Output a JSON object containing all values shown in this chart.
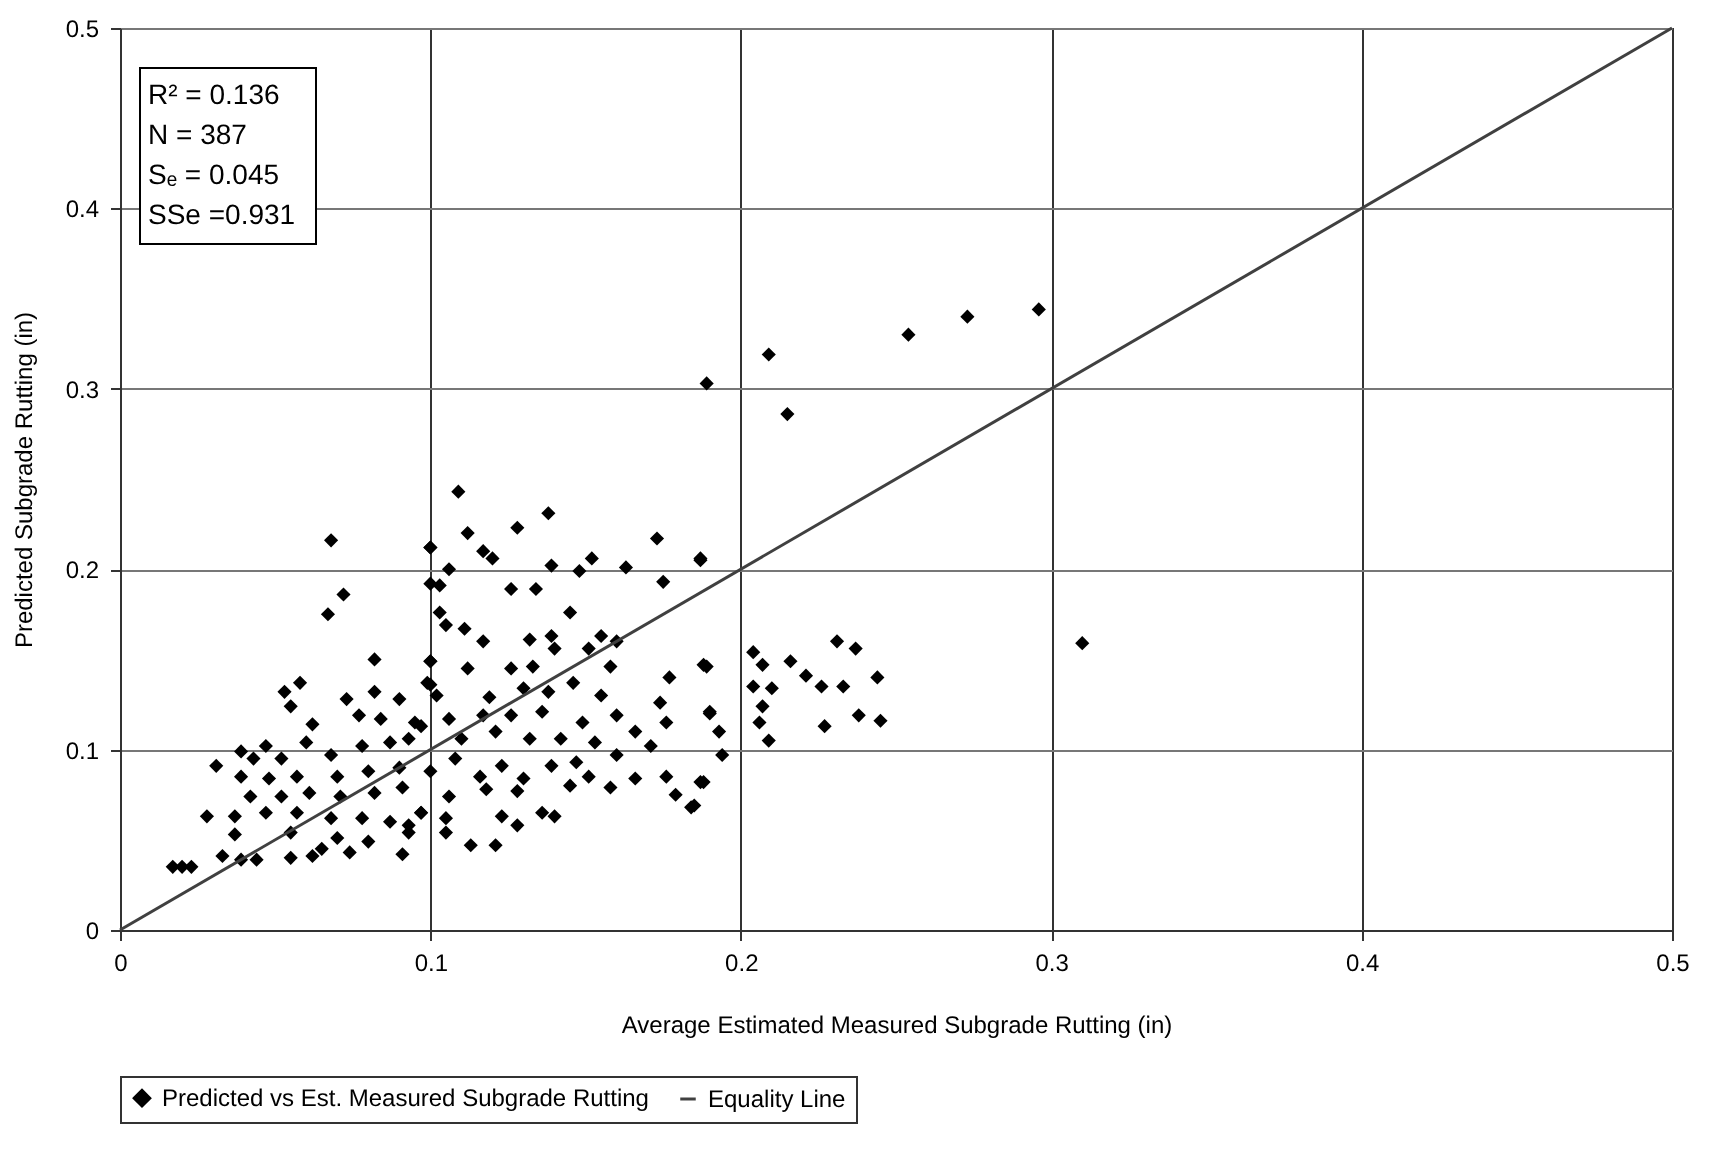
{
  "chart_data": {
    "type": "scatter",
    "xlabel": "Average Estimated Measured Subgrade Rutting (in)",
    "ylabel": "Predicted Subgrade Rutting (in)",
    "xlim": [
      0,
      0.5
    ],
    "ylim": [
      0,
      0.5
    ],
    "xticks": [
      0,
      0.1,
      0.2,
      0.3,
      0.4,
      0.5
    ],
    "yticks": [
      0,
      0.1,
      0.2,
      0.3,
      0.4,
      0.5
    ],
    "grid": true,
    "legend": "bottom",
    "annotations": [
      "R² = 0.136",
      "N  = 387",
      "Sₑ = 0.045",
      "SSe =0.931"
    ],
    "series": [
      {
        "name": "Predicted vs Est. Measured Subgrade Rutting",
        "type": "scatter",
        "marker": "diamond",
        "color": "#000000",
        "x": [
          0.189,
          0.209,
          0.215,
          0.254,
          0.273,
          0.296,
          0.31,
          0.231,
          0.237,
          0.204,
          0.207,
          0.216,
          0.221,
          0.204,
          0.21,
          0.226,
          0.233,
          0.244,
          0.207,
          0.206,
          0.238,
          0.245,
          0.227,
          0.209,
          0.189,
          0.19,
          0.193,
          0.194,
          0.188,
          0.185,
          0.187,
          0.109,
          0.138,
          0.128,
          0.112,
          0.1,
          0.117,
          0.12,
          0.173,
          0.187,
          0.106,
          0.139,
          0.152,
          0.163,
          0.148,
          0.103,
          0.126,
          0.134,
          0.175,
          0.145,
          0.103,
          0.105,
          0.111,
          0.117,
          0.132,
          0.139,
          0.14,
          0.155,
          0.16,
          0.151,
          0.158,
          0.1,
          0.112,
          0.126,
          0.133,
          0.188,
          0.177,
          0.099,
          0.102,
          0.119,
          0.13,
          0.138,
          0.146,
          0.155,
          0.174,
          0.19,
          0.176,
          0.106,
          0.117,
          0.126,
          0.136,
          0.149,
          0.16,
          0.166,
          0.171,
          0.097,
          0.11,
          0.121,
          0.132,
          0.142,
          0.153,
          0.16,
          0.108,
          0.123,
          0.139,
          0.147,
          0.176,
          0.187,
          0.1,
          0.116,
          0.13,
          0.151,
          0.166,
          0.158,
          0.179,
          0.184,
          0.106,
          0.118,
          0.128,
          0.145,
          0.097,
          0.105,
          0.123,
          0.128,
          0.136,
          0.14,
          0.105,
          0.113,
          0.121,
          0.093,
          0.068,
          0.072,
          0.067,
          0.1,
          0.1,
          0.082,
          0.058,
          0.053,
          0.055,
          0.073,
          0.082,
          0.09,
          0.1,
          0.1,
          0.062,
          0.077,
          0.084,
          0.095,
          0.06,
          0.047,
          0.039,
          0.031,
          0.043,
          0.052,
          0.068,
          0.078,
          0.087,
          0.093,
          0.039,
          0.048,
          0.057,
          0.07,
          0.08,
          0.09,
          0.042,
          0.052,
          0.061,
          0.071,
          0.082,
          0.091,
          0.028,
          0.037,
          0.047,
          0.057,
          0.068,
          0.078,
          0.087,
          0.097,
          0.037,
          0.055,
          0.07,
          0.08,
          0.093,
          0.033,
          0.039,
          0.044,
          0.055,
          0.062,
          0.065,
          0.074,
          0.091,
          0.017,
          0.02,
          0.023
        ],
        "values": [
          0.303,
          0.319,
          0.286,
          0.33,
          0.34,
          0.344,
          0.159,
          0.16,
          0.156,
          0.154,
          0.147,
          0.149,
          0.141,
          0.135,
          0.134,
          0.135,
          0.135,
          0.14,
          0.124,
          0.115,
          0.119,
          0.116,
          0.113,
          0.105,
          0.146,
          0.12,
          0.11,
          0.097,
          0.082,
          0.069,
          0.205,
          0.243,
          0.231,
          0.223,
          0.22,
          0.212,
          0.21,
          0.206,
          0.217,
          0.206,
          0.2,
          0.202,
          0.206,
          0.201,
          0.199,
          0.191,
          0.189,
          0.189,
          0.193,
          0.176,
          0.176,
          0.169,
          0.167,
          0.16,
          0.161,
          0.163,
          0.156,
          0.163,
          0.16,
          0.156,
          0.146,
          0.149,
          0.145,
          0.145,
          0.146,
          0.147,
          0.14,
          0.137,
          0.13,
          0.129,
          0.134,
          0.132,
          0.137,
          0.13,
          0.126,
          0.121,
          0.115,
          0.117,
          0.119,
          0.119,
          0.121,
          0.115,
          0.119,
          0.11,
          0.102,
          0.113,
          0.106,
          0.11,
          0.106,
          0.106,
          0.104,
          0.097,
          0.095,
          0.091,
          0.091,
          0.093,
          0.085,
          0.082,
          0.088,
          0.085,
          0.084,
          0.085,
          0.084,
          0.079,
          0.075,
          0.068,
          0.074,
          0.078,
          0.077,
          0.08,
          0.065,
          0.062,
          0.063,
          0.058,
          0.065,
          0.063,
          0.054,
          0.047,
          0.047,
          0.058,
          0.216,
          0.186,
          0.175,
          0.212,
          0.192,
          0.15,
          0.137,
          0.132,
          0.124,
          0.128,
          0.132,
          0.128,
          0.149,
          0.136,
          0.114,
          0.119,
          0.117,
          0.115,
          0.104,
          0.102,
          0.099,
          0.091,
          0.095,
          0.095,
          0.097,
          0.102,
          0.104,
          0.106,
          0.085,
          0.084,
          0.085,
          0.085,
          0.088,
          0.09,
          0.074,
          0.074,
          0.076,
          0.074,
          0.076,
          0.079,
          0.063,
          0.063,
          0.065,
          0.065,
          0.062,
          0.062,
          0.06,
          0.065,
          0.053,
          0.054,
          0.051,
          0.049,
          0.054,
          0.041,
          0.039,
          0.039,
          0.04,
          0.041,
          0.045,
          0.043,
          0.042,
          0.035,
          0.035,
          0.035
        ]
      },
      {
        "name": "Equality Line",
        "type": "line",
        "color": "#404040",
        "x": [
          0,
          0.5
        ],
        "values": [
          0,
          0.5
        ]
      }
    ]
  }
}
